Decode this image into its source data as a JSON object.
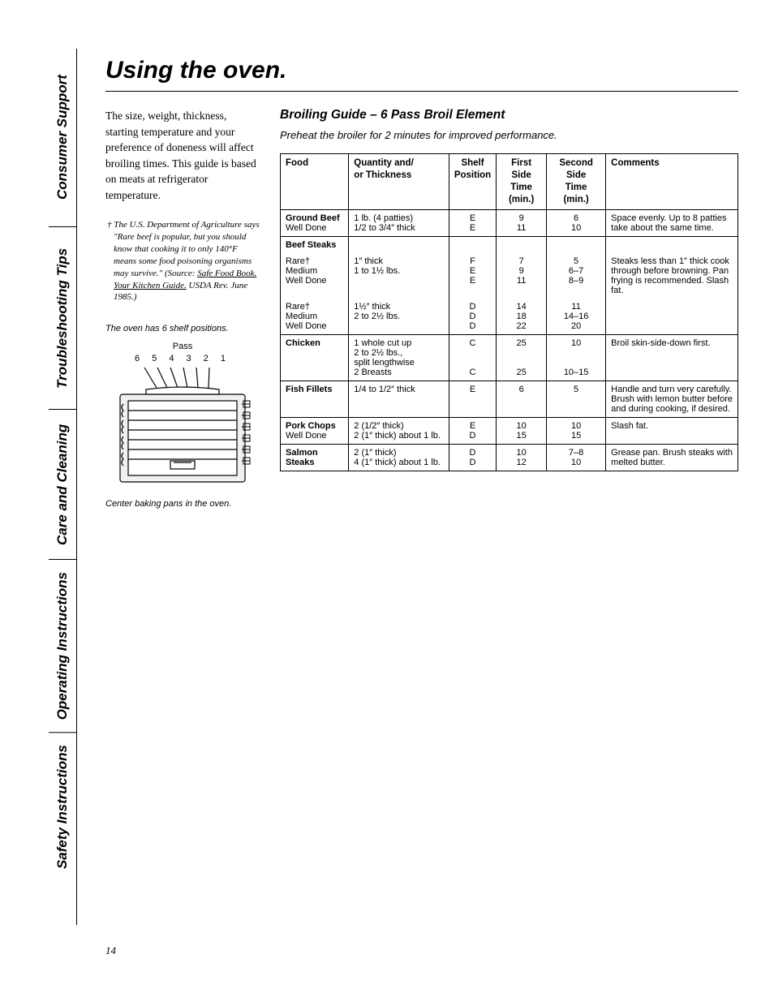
{
  "tabs": {
    "safety": "Safety Instructions",
    "operating": "Operating Instructions",
    "care": "Care and Cleaning",
    "trouble": "Troubleshooting Tips",
    "consumer": "Consumer Support"
  },
  "title": "Using the oven.",
  "intro": "The size, weight, thickness, starting temperature and your preference of doneness will affect broiling times. This guide is based on meats at refrigerator temperature.",
  "footnote_lead": "† The U.S. Department of Agriculture says \"Rare beef is popular, but you should know that cooking it to only 140°F means some food poisoning organisms may survive.\" (Source: ",
  "footnote_book": "Safe Food Book. Your Kitchen Guide.",
  "footnote_tail": " USDA Rev. June 1985.)",
  "shelf_caption": "The oven has 6 shelf positions.",
  "pass_label": "Pass",
  "shelf_nums": "6 5 4 3 2 1",
  "center_caption": "Center baking pans in the oven.",
  "section_title": "Broiling Guide – 6 Pass Broil Element",
  "preheat": "Preheat the broiler for 2 minutes for improved performance.",
  "headers": {
    "food": "Food",
    "qty": "Quantity and/\nor Thickness",
    "shelf": "Shelf\nPosition",
    "first": "First Side\nTime (min.)",
    "second": "Second Side\nTime (min.)",
    "comments": "Comments"
  },
  "rows": [
    {
      "type": "group",
      "food": "Ground Beef",
      "sub": "Well Done",
      "qty1": "1 lb. (4 patties)",
      "qty2": "1/2 to 3/4″ thick",
      "shelf": [
        "E",
        "E"
      ],
      "first": [
        "9",
        "11"
      ],
      "second": [
        "6",
        "10"
      ],
      "comments": "Space evenly. Up to 8 patties take about the same time."
    },
    {
      "type": "header",
      "food": "Beef Steaks"
    },
    {
      "type": "multi",
      "labels": [
        "Rare†",
        "Medium",
        "Well Done"
      ],
      "qty": [
        "1″ thick",
        "1 to 1½ lbs."
      ],
      "shelf": [
        "F",
        "E",
        "E"
      ],
      "first": [
        "7",
        "9",
        "11"
      ],
      "second": [
        "5",
        "6–7",
        "8–9"
      ],
      "comments": "Steaks less than 1″ thick cook through before browning. Pan frying is recommended. Slash fat."
    },
    {
      "type": "multi",
      "labels": [
        "Rare†",
        "Medium",
        "Well Done"
      ],
      "qty": [
        "1½″ thick",
        "2 to 2½ lbs."
      ],
      "shelf": [
        "D",
        "D",
        "D"
      ],
      "first": [
        "14",
        "18",
        "22"
      ],
      "second": [
        "11",
        "14–16",
        "20"
      ],
      "comments": ""
    },
    {
      "type": "chicken",
      "food": "Chicken",
      "qty1": "1 whole cut up",
      "qty2": "2 to 2½ lbs.,",
      "qty3": "split lengthwise",
      "qty4": "2 Breasts",
      "shelf": [
        "C",
        "",
        "",
        "C"
      ],
      "first": [
        "25",
        "",
        "",
        "25"
      ],
      "second": [
        "10",
        "",
        "",
        "10–15"
      ],
      "comments": "Broil skin-side-down first."
    },
    {
      "type": "single",
      "food": "Fish Fillets",
      "qty": "1/4 to 1/2″ thick",
      "shelf": "E",
      "first": "6",
      "second": "5",
      "comments": "Handle and turn very carefully. Brush with lemon butter before and during cooking, if desired."
    },
    {
      "type": "group",
      "food": "Pork Chops",
      "sub": "Well Done",
      "qty1": "2 (1/2″ thick)",
      "qty2": "2 (1″ thick) about 1 lb.",
      "shelf": [
        "E",
        "D"
      ],
      "first": [
        "10",
        "15"
      ],
      "second": [
        "10",
        "15"
      ],
      "comments": "Slash fat."
    },
    {
      "type": "group",
      "food": "Salmon Steaks",
      "sub": "",
      "qty1": "2 (1″ thick)",
      "qty2": "4 (1″ thick) about 1 lb.",
      "shelf": [
        "D",
        "D"
      ],
      "first": [
        "10",
        "12"
      ],
      "second": [
        "7–8",
        "10"
      ],
      "comments": "Grease pan. Brush steaks with melted butter."
    }
  ],
  "page_num": "14"
}
